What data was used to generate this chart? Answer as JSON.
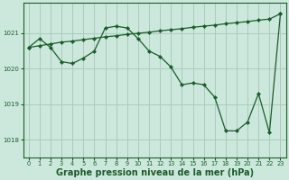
{
  "background_color": "#cce8dc",
  "grid_color": "#aaccbb",
  "line_color": "#1a5c2a",
  "marker_color": "#1a5c2a",
  "xlabel": "Graphe pression niveau de la mer (hPa)",
  "xlabel_fontsize": 7.0,
  "ylim": [
    1017.5,
    1021.85
  ],
  "yticks": [
    1018,
    1019,
    1020,
    1021
  ],
  "xticks": [
    0,
    1,
    2,
    3,
    4,
    5,
    6,
    7,
    8,
    9,
    10,
    11,
    12,
    13,
    14,
    15,
    16,
    17,
    18,
    19,
    20,
    21,
    22,
    23
  ],
  "series1_x": [
    0,
    1,
    2,
    3,
    4,
    5,
    6,
    7,
    8,
    9,
    10,
    11,
    12,
    13,
    14,
    15,
    16,
    17,
    18,
    19,
    20,
    21,
    22,
    23
  ],
  "series1_y": [
    1020.6,
    1020.85,
    1020.6,
    1020.2,
    1020.15,
    1020.3,
    1020.5,
    1021.15,
    1021.2,
    1021.15,
    1020.85,
    1020.5,
    1020.35,
    1020.05,
    1019.55,
    1019.6,
    1019.55,
    1019.2,
    1018.25,
    1018.25,
    1018.5,
    1019.3,
    1018.2,
    1021.55
  ],
  "series2_x": [
    0,
    1,
    2,
    3,
    4,
    5,
    6,
    7,
    8,
    9,
    10,
    11,
    12,
    13,
    14,
    15,
    16,
    17,
    18,
    19,
    20,
    21,
    22,
    23
  ],
  "series2_y": [
    1020.6,
    1020.65,
    1020.7,
    1020.75,
    1020.78,
    1020.82,
    1020.86,
    1020.9,
    1020.93,
    1020.97,
    1021.0,
    1021.03,
    1021.07,
    1021.1,
    1021.13,
    1021.17,
    1021.2,
    1021.23,
    1021.27,
    1021.3,
    1021.33,
    1021.37,
    1021.4,
    1021.55
  ]
}
